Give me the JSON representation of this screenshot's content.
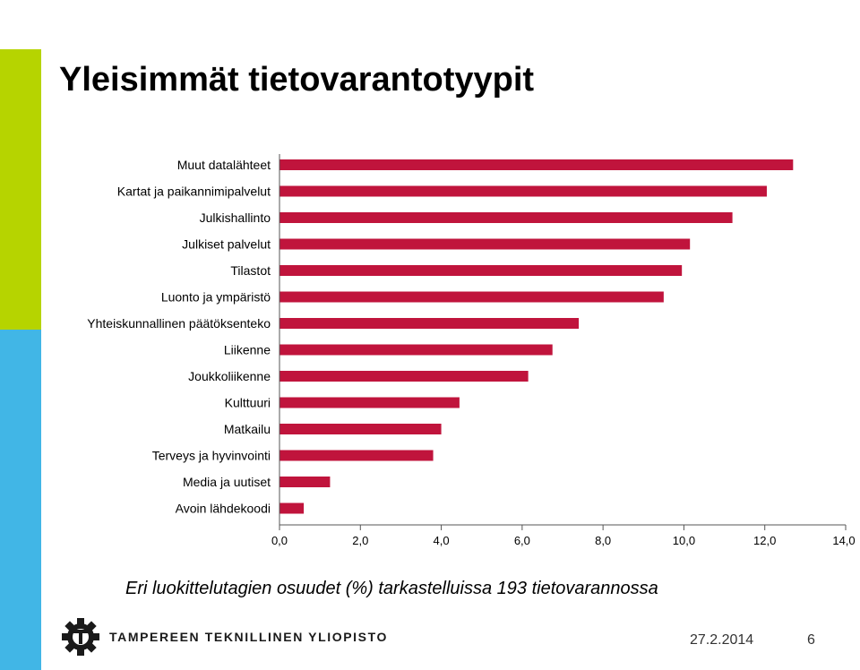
{
  "slide": {
    "title": "Yleisimmät tietovarantotyypit",
    "caption": "Eri luokittelutagien osuudet (%) tarkastelluissa 193 tietovarannossa",
    "date": "27.2.2014",
    "page": "6",
    "logo_text": "TAMPEREEN TEKNILLINEN YLIOPISTO"
  },
  "colors": {
    "bar": "#c0143c",
    "accent_green": "#b6d400",
    "accent_blue": "#41b6e6"
  },
  "icons": {
    "logo": "tut-gear-logo-icon"
  },
  "chart_data": {
    "type": "bar",
    "orientation": "horizontal",
    "categories": [
      "Muut datalähteet",
      "Kartat ja paikannimipalvelut",
      "Julkishallinto",
      "Julkiset palvelut",
      "Tilastot",
      "Luonto ja ympäristö",
      "Yhteiskunnallinen päätöksenteko",
      "Liikenne",
      "Joukkoliikenne",
      "Kulttuuri",
      "Matkailu",
      "Terveys ja hyvinvointi",
      "Media ja uutiset",
      "Avoin lähdekoodi"
    ],
    "values": [
      12.7,
      12.05,
      11.2,
      10.15,
      9.95,
      9.5,
      7.4,
      6.75,
      6.15,
      4.45,
      4.0,
      3.8,
      1.25,
      0.6
    ],
    "xlim": [
      0,
      14
    ],
    "xticks": [
      "0,0",
      "2,0",
      "4,0",
      "6,0",
      "8,0",
      "10,0",
      "12,0",
      "14,0"
    ],
    "grid": false,
    "legend": "none"
  }
}
